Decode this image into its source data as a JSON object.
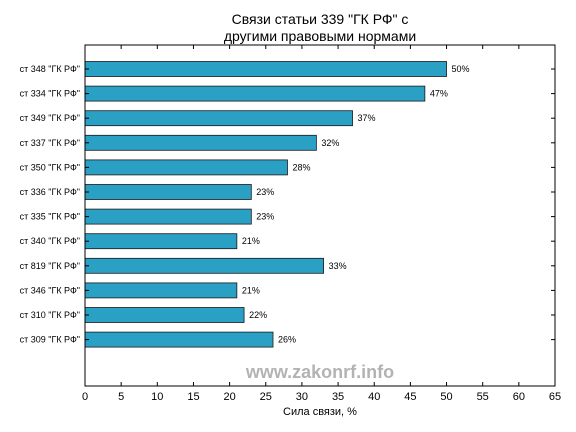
{
  "chart_data": {
    "type": "bar",
    "orientation": "horizontal",
    "title_lines": [
      "Связи статьи 339 \"ГК РФ\" с",
      "другими правовыми нормами"
    ],
    "xlabel": "Сила связи, %",
    "ylabel": "",
    "xlim": [
      0,
      65
    ],
    "xticks": [
      0,
      5,
      10,
      15,
      20,
      25,
      30,
      35,
      40,
      45,
      50,
      55,
      60,
      65
    ],
    "grid": false,
    "categories": [
      "ст 348 \"ГК РФ\"",
      "ст 334 \"ГК РФ\"",
      "ст 349 \"ГК РФ\"",
      "ст 337 \"ГК РФ\"",
      "ст 350 \"ГК РФ\"",
      "ст 336 \"ГК РФ\"",
      "ст 335 \"ГК РФ\"",
      "ст 340 \"ГК РФ\"",
      "ст 819 \"ГК РФ\"",
      "ст 346 \"ГК РФ\"",
      "ст 310 \"ГК РФ\"",
      "ст 309 \"ГК РФ\""
    ],
    "values": [
      50,
      47,
      37,
      32,
      28,
      23,
      23,
      21,
      33,
      21,
      22,
      26
    ],
    "value_labels": [
      "50%",
      "47%",
      "37%",
      "32%",
      "28%",
      "23%",
      "23%",
      "21%",
      "33%",
      "21%",
      "22%",
      "26%"
    ],
    "bar_color": "#2ba0c5",
    "bar_edge_color": "#1a1a1a",
    "watermark": "www.zakonrf.info"
  }
}
